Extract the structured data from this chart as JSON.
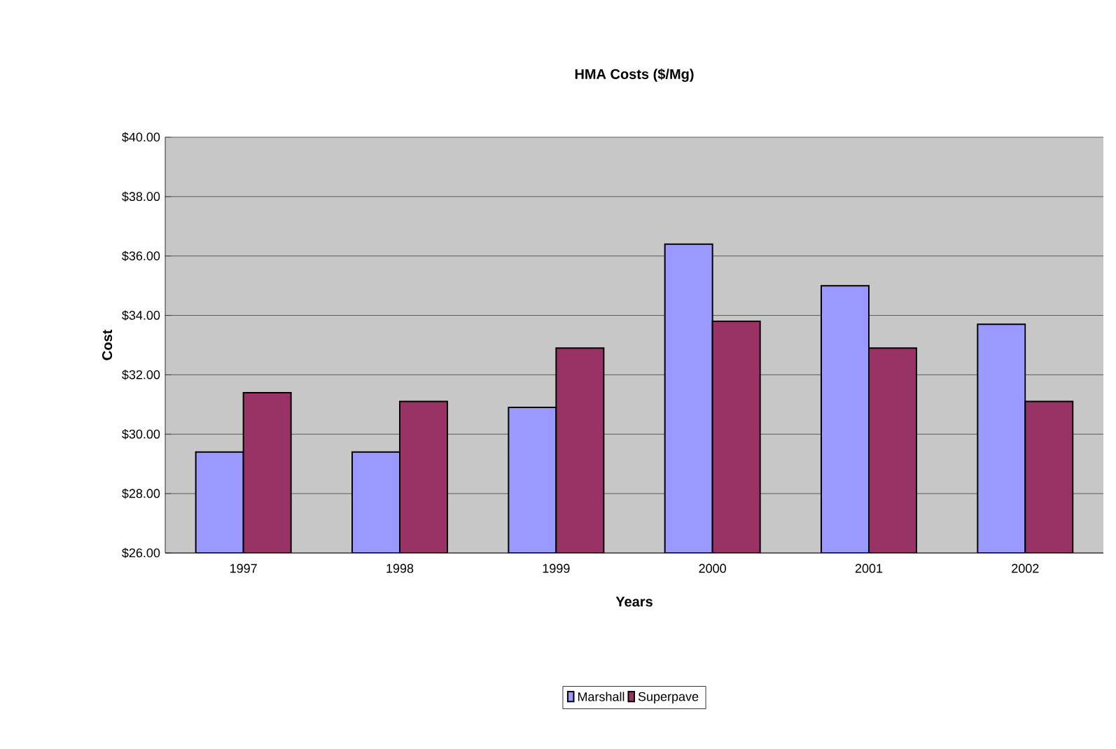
{
  "chart_data": {
    "type": "bar",
    "title": "HMA Costs ($/Mg)",
    "xlabel": "Years",
    "ylabel": "Cost",
    "categories": [
      "1997",
      "1998",
      "1999",
      "2000",
      "2001",
      "2002"
    ],
    "series": [
      {
        "name": "Marshall",
        "color": "#9999ff",
        "values": [
          29.4,
          29.4,
          30.9,
          36.4,
          35.0,
          33.7
        ]
      },
      {
        "name": "Superpave",
        "color": "#993366",
        "values": [
          31.4,
          31.1,
          32.9,
          33.8,
          32.9,
          31.1
        ]
      }
    ],
    "ylim": [
      26,
      40
    ],
    "yticks": [
      {
        "value": 26,
        "label": "$26.00"
      },
      {
        "value": 28,
        "label": "$28.00"
      },
      {
        "value": 30,
        "label": "$30.00"
      },
      {
        "value": 32,
        "label": "$32.00"
      },
      {
        "value": 34,
        "label": "$34.00"
      },
      {
        "value": 36,
        "label": "$36.00"
      },
      {
        "value": 38,
        "label": "$38.00"
      },
      {
        "value": 40,
        "label": "$40.00"
      }
    ],
    "grid": "y",
    "legend": "bottom"
  }
}
